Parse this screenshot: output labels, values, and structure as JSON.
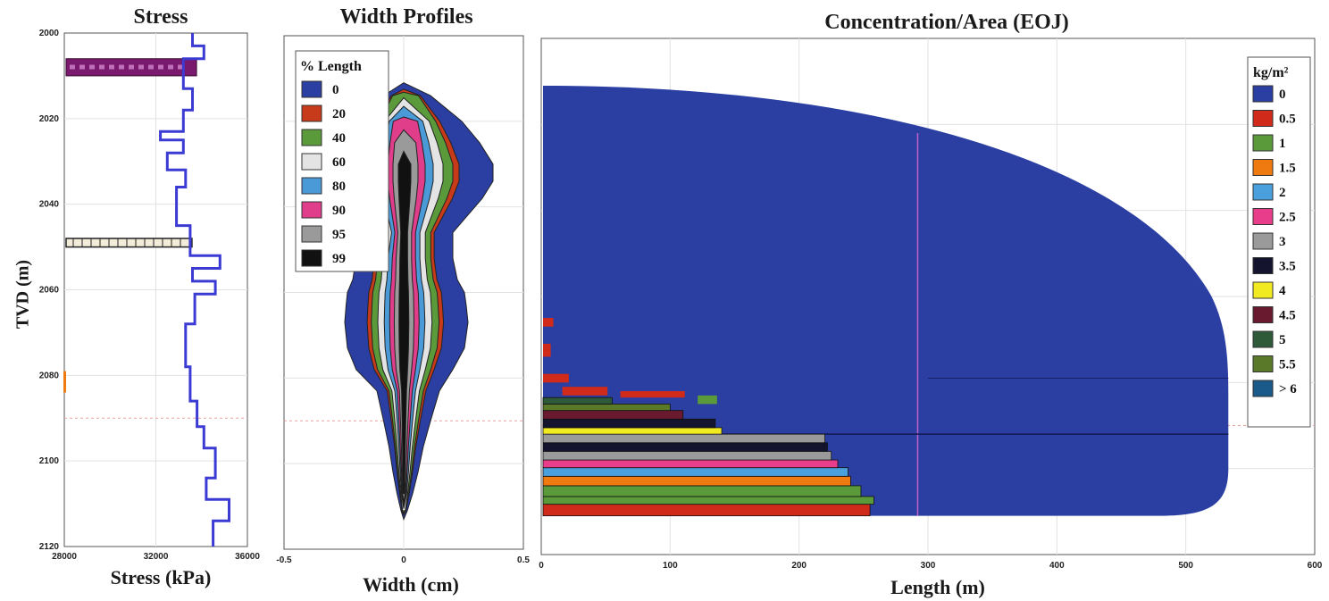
{
  "chart_data": [
    {
      "type": "line",
      "title": "Stress",
      "xlabel": "Stress (kPa)",
      "ylabel": "TVD (m)",
      "xlim": [
        28000,
        36000
      ],
      "ylim": [
        2000,
        2120
      ],
      "x_ticks": [
        "28000",
        "32000",
        "36000"
      ],
      "y_ticks": [
        "2000",
        "2020",
        "2040",
        "2060",
        "2080",
        "2100",
        "2120"
      ],
      "grid": true,
      "colors": {
        "line": "#3b3bd4",
        "perf_zone": "#7a1a6e",
        "marker_zone": "#f2ecd8"
      },
      "profile": {
        "tvd": [
          2000,
          2003,
          2003,
          2006,
          2006,
          2013,
          2013,
          2018,
          2018,
          2023,
          2023,
          2025,
          2025,
          2028,
          2028,
          2032,
          2032,
          2036,
          2036,
          2045,
          2045,
          2052,
          2052,
          2055,
          2055,
          2058,
          2058,
          2061,
          2061,
          2068,
          2068,
          2078,
          2078,
          2086,
          2086,
          2092,
          2092,
          2097,
          2097,
          2104,
          2104,
          2109,
          2109,
          2114,
          2114,
          2120
        ],
        "stress": [
          33600,
          33600,
          34100,
          34100,
          33200,
          33200,
          33600,
          33600,
          33200,
          33200,
          32200,
          32200,
          33200,
          33200,
          32500,
          32500,
          33300,
          33300,
          32900,
          32900,
          33500,
          33500,
          34800,
          34800,
          33600,
          33600,
          34600,
          34600,
          33700,
          33700,
          33300,
          33300,
          33500,
          33500,
          33800,
          33800,
          34100,
          34100,
          34600,
          34600,
          34200,
          34200,
          35200,
          35200,
          34500,
          34500
        ]
      }
    },
    {
      "type": "area",
      "title": "Width Profiles",
      "xlabel": "Width (cm)",
      "xlim": [
        -0.5,
        0.5
      ],
      "x_ticks": [
        "-0.5",
        "0",
        "0.5"
      ],
      "ylim": [
        2000,
        2120
      ],
      "legend_title": "% Length",
      "legend_position": "top-left",
      "series": [
        {
          "name": "0",
          "color": "#2b3fa3"
        },
        {
          "name": "20",
          "color": "#c73a1a"
        },
        {
          "name": "40",
          "color": "#5a9a3a"
        },
        {
          "name": "60",
          "color": "#e4e4e4"
        },
        {
          "name": "80",
          "color": "#4a9ad8"
        },
        {
          "name": "90",
          "color": "#e03d8a"
        },
        {
          "name": "95",
          "color": "#9a9a9a"
        },
        {
          "name": "99",
          "color": "#111111"
        }
      ]
    },
    {
      "type": "heatmap",
      "title": "Concentration/Area (EOJ)",
      "xlabel": "Length (m)",
      "xlim": [
        0,
        600
      ],
      "x_ticks": [
        "0",
        "100",
        "200",
        "300",
        "400",
        "500",
        "600"
      ],
      "ylim": [
        2000,
        2120
      ],
      "legend_title": "kg/m²",
      "legend_position": "top-right",
      "series": [
        {
          "name": "0",
          "color": "#2b3fa3"
        },
        {
          "name": "0.5",
          "color": "#cf2a1a"
        },
        {
          "name": "1",
          "color": "#5a9a3a"
        },
        {
          "name": "1.5",
          "color": "#ee7a10"
        },
        {
          "name": "2",
          "color": "#4aa0dc"
        },
        {
          "name": "2.5",
          "color": "#e83d8a"
        },
        {
          "name": "3",
          "color": "#9a9a9a"
        },
        {
          "name": "3.5",
          "color": "#14142e"
        },
        {
          "name": "4",
          "color": "#f2ea20"
        },
        {
          "name": "4.5",
          "color": "#6a1a2e"
        },
        {
          "name": "5",
          "color": "#2e5a3a"
        },
        {
          "name": "5.5",
          "color": "#5a7a2a"
        },
        {
          "name": "> 6",
          "color": "#1a5a8a"
        }
      ]
    }
  ]
}
